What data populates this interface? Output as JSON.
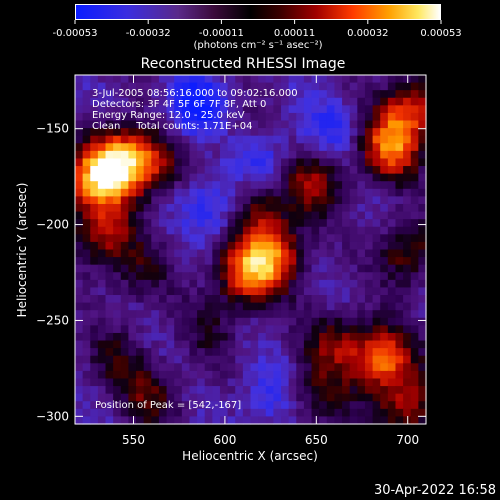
{
  "colorbar": {
    "ticks": [
      "-0.00053",
      "-0.00032",
      "-0.00011",
      "0.00011",
      "0.00032",
      "0.00053"
    ],
    "units": "(photons cm⁻² s⁻¹ asec⁻²)"
  },
  "image": {
    "title": "Reconstructed RHESSI Image",
    "info_lines": [
      "3-Jul-2005 08:56:16.000 to 09:02:16.000",
      "Detectors: 3F 4F 5F 6F 7F 8F, Att 0",
      "Energy Range: 12.0 - 25.0 keV",
      "Clean     Total counts: 1.71E+04"
    ],
    "peak_text": "Position of Peak = [542,-167]"
  },
  "footer": {
    "timestamp": "30-Apr-2022 16:58"
  },
  "chart_data": {
    "type": "heatmap",
    "title": "Reconstructed RHESSI Image",
    "xlabel": "Heliocentric X (arcsec)",
    "ylabel": "Heliocentric Y (arcsec)",
    "xlim": [
      518,
      710
    ],
    "ylim": [
      -304,
      -122
    ],
    "x_ticks": [
      550,
      600,
      650,
      700
    ],
    "y_ticks": [
      -150,
      -200,
      -250,
      -300
    ],
    "peak": [
      542,
      -167
    ],
    "colorbar_range": [
      -0.00053,
      0.00053
    ],
    "intensity_grid_note_rows": 18,
    "blobs": [
      {
        "x": 542,
        "y": -167,
        "v": 1.0
      },
      {
        "x": 528,
        "y": -178,
        "v": 0.75
      },
      {
        "x": 533,
        "y": -205,
        "v": 0.6
      },
      {
        "x": 560,
        "y": -168,
        "v": 0.55
      },
      {
        "x": 553,
        "y": -225,
        "v": 0.3
      },
      {
        "x": 600,
        "y": -150,
        "v": 0.2
      },
      {
        "x": 612,
        "y": -225,
        "v": 0.85
      },
      {
        "x": 628,
        "y": -215,
        "v": 0.7
      },
      {
        "x": 648,
        "y": -178,
        "v": 0.55
      },
      {
        "x": 618,
        "y": -190,
        "v": 0.5
      },
      {
        "x": 592,
        "y": -255,
        "v": 0.25
      },
      {
        "x": 690,
        "y": -160,
        "v": 0.85
      },
      {
        "x": 702,
        "y": -140,
        "v": 0.7
      },
      {
        "x": 700,
        "y": -215,
        "v": 0.5
      },
      {
        "x": 686,
        "y": -270,
        "v": 0.9
      },
      {
        "x": 700,
        "y": -295,
        "v": 0.6
      },
      {
        "x": 660,
        "y": -262,
        "v": 0.45
      },
      {
        "x": 650,
        "y": -290,
        "v": 0.4
      },
      {
        "x": 540,
        "y": -270,
        "v": 0.3
      },
      {
        "x": 560,
        "y": -290,
        "v": 0.4
      }
    ],
    "cold": [
      {
        "x": 585,
        "y": -140,
        "v": -0.6
      },
      {
        "x": 595,
        "y": -190,
        "v": -0.4
      },
      {
        "x": 620,
        "y": -168,
        "v": -0.35
      },
      {
        "x": 625,
        "y": -290,
        "v": -0.3
      },
      {
        "x": 658,
        "y": -150,
        "v": -0.3
      }
    ]
  }
}
